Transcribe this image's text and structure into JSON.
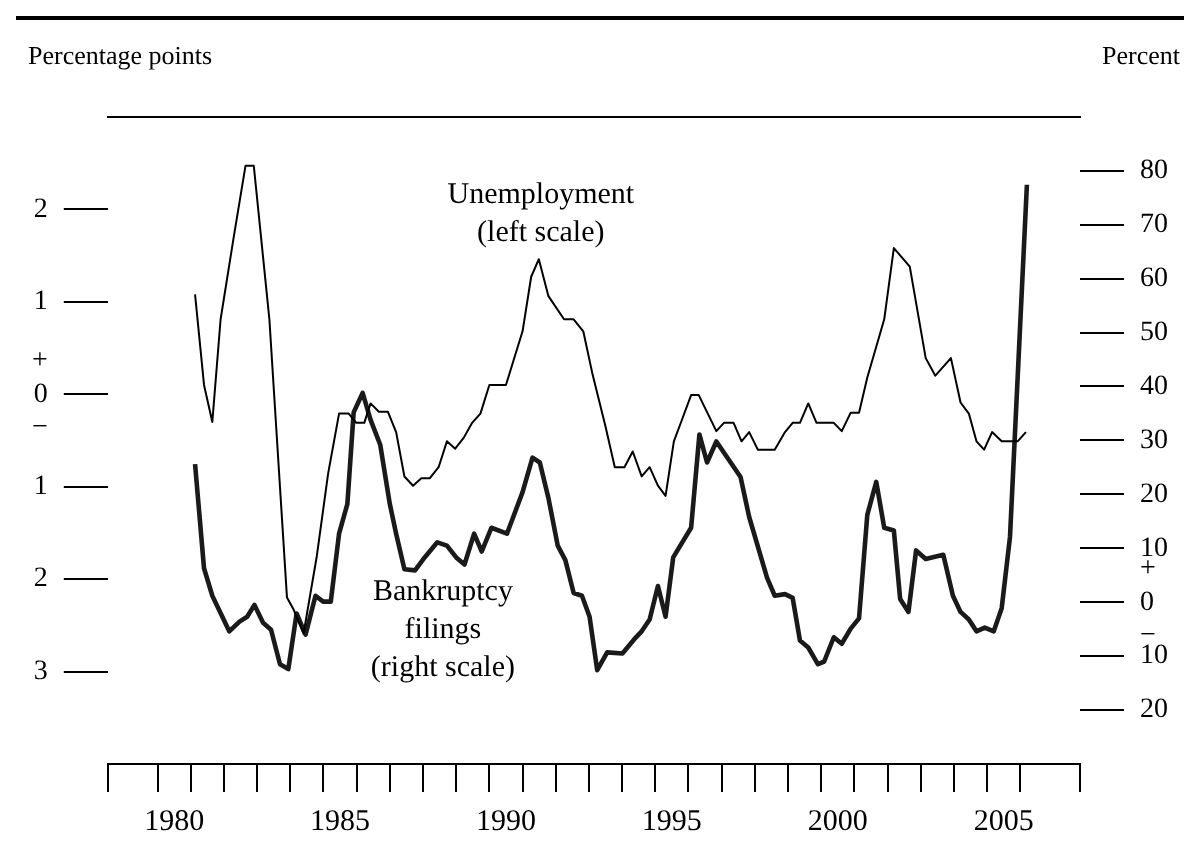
{
  "chart_data": {
    "type": "line",
    "ylabel": "Percentage points",
    "y2label": "Percent",
    "annotations": [
      "Unemployment\n(left scale)",
      "Bankruptcy\nfilings\n(right scale)"
    ],
    "xlim": [
      1978.5,
      2007.8
    ],
    "xticks": [
      {
        "value": 1978.5,
        "label": null
      },
      {
        "value": 1980,
        "label": null
      },
      {
        "value": 1980.5,
        "label": "1980"
      },
      {
        "value": 1981,
        "label": null
      },
      {
        "value": 1982,
        "label": null
      },
      {
        "value": 1983,
        "label": null
      },
      {
        "value": 1984,
        "label": null
      },
      {
        "value": 1985,
        "label": null
      },
      {
        "value": 1985.5,
        "label": "1985"
      },
      {
        "value": 1986,
        "label": null
      },
      {
        "value": 1987,
        "label": null
      },
      {
        "value": 1988,
        "label": null
      },
      {
        "value": 1989,
        "label": null
      },
      {
        "value": 1990,
        "label": null
      },
      {
        "value": 1990.5,
        "label": "1990"
      },
      {
        "value": 1991,
        "label": null
      },
      {
        "value": 1992,
        "label": null
      },
      {
        "value": 1993,
        "label": null
      },
      {
        "value": 1994,
        "label": null
      },
      {
        "value": 1995,
        "label": null
      },
      {
        "value": 1995.5,
        "label": "1995"
      },
      {
        "value": 1996,
        "label": null
      },
      {
        "value": 1997,
        "label": null
      },
      {
        "value": 1998,
        "label": null
      },
      {
        "value": 1999,
        "label": null
      },
      {
        "value": 2000,
        "label": null
      },
      {
        "value": 2000.5,
        "label": "2000"
      },
      {
        "value": 2001,
        "label": null
      },
      {
        "value": 2002,
        "label": null
      },
      {
        "value": 2003,
        "label": null
      },
      {
        "value": 2004,
        "label": null
      },
      {
        "value": 2005,
        "label": null
      },
      {
        "value": 2005.5,
        "label": "2005"
      },
      {
        "value": 2006,
        "label": null
      },
      {
        "value": 2007.8,
        "label": null
      }
    ],
    "ylim": [
      -4,
      3
    ],
    "yticks": [
      2,
      1,
      {
        "value": 0,
        "label": "+\n0\n−"
      },
      {
        "value": -1,
        "label": "1"
      },
      {
        "value": -2,
        "label": "2"
      },
      {
        "value": -3,
        "label": "3"
      }
    ],
    "y2lim": [
      -30,
      90
    ],
    "y2ticks": [
      80,
      70,
      60,
      50,
      40,
      30,
      20,
      10,
      {
        "value": 0,
        "label": "+\n0\n−"
      },
      {
        "value": -10,
        "label": "10"
      },
      {
        "value": -20,
        "label": "20"
      }
    ],
    "grid": false,
    "series": [
      {
        "color": "#000000",
        "x": [
          1981.13,
          1981.4,
          1981.65,
          1981.9,
          1982.3,
          1982.65,
          1982.9,
          1983.37,
          1983.9,
          1984.1,
          1984.4,
          1984.8,
          1985.14,
          1985.47,
          1985.76,
          1985.99,
          1986.23,
          1986.42,
          1986.67,
          1986.94,
          1987.19,
          1987.44,
          1987.7,
          1987.95,
          1988.2,
          1988.47,
          1988.72,
          1988.97,
          1989.23,
          1989.48,
          1989.73,
          1990.0,
          1990.5,
          1991.0,
          1991.26,
          1991.49,
          1991.78,
          1992.25,
          1992.54,
          1992.83,
          1993.1,
          1993.5,
          1993.78,
          1994.07,
          1994.32,
          1994.59,
          1994.83,
          1995.08,
          1995.31,
          1995.56,
          1995.79,
          1996.08,
          1996.31,
          1996.84,
          1997.07,
          1997.36,
          1997.6,
          1997.83,
          1998.09,
          1998.6,
          1998.91,
          1999.14,
          1999.36,
          1999.61,
          1999.86,
          2000.38,
          2000.62,
          2000.89,
          2001.14,
          2001.39,
          2001.9,
          2002.19,
          2002.67,
          2003.15,
          2003.44,
          2003.91,
          2004.2,
          2004.45,
          2004.68,
          2004.91,
          2005.15,
          2005.44,
          2005.92,
          2006.17
        ],
        "values": [
          1.08,
          0.1,
          -0.3,
          0.81,
          1.71,
          2.47,
          2.47,
          0.81,
          -2.2,
          -2.33,
          -2.59,
          -1.75,
          -0.86,
          -0.21,
          -0.21,
          -0.31,
          -0.31,
          -0.1,
          -0.19,
          -0.19,
          -0.41,
          -0.89,
          -0.99,
          -0.91,
          -0.91,
          -0.79,
          -0.51,
          -0.59,
          -0.47,
          -0.31,
          -0.21,
          0.1,
          0.1,
          0.68,
          1.27,
          1.46,
          1.06,
          0.81,
          0.81,
          0.68,
          0.23,
          -0.35,
          -0.79,
          -0.79,
          -0.62,
          -0.89,
          -0.79,
          -0.99,
          -1.1,
          -0.51,
          -0.29,
          -0.01,
          -0.01,
          -0.4,
          -0.31,
          -0.31,
          -0.51,
          -0.41,
          -0.6,
          -0.6,
          -0.41,
          -0.31,
          -0.31,
          -0.1,
          -0.31,
          -0.31,
          -0.4,
          -0.2,
          -0.2,
          0.18,
          0.81,
          1.58,
          1.38,
          0.39,
          0.2,
          0.39,
          -0.09,
          -0.21,
          -0.51,
          -0.6,
          -0.41,
          -0.51,
          -0.51,
          -0.41
        ]
      },
      {
        "color": "#1a1a1a",
        "axis": "y2",
        "x": [
          1981.13,
          1981.4,
          1981.65,
          1982.16,
          1982.47,
          1982.7,
          1982.92,
          1983.18,
          1983.42,
          1983.69,
          1983.94,
          1984.19,
          1984.46,
          1984.76,
          1984.99,
          1985.22,
          1985.47,
          1985.72,
          1985.91,
          1986.18,
          1986.42,
          1986.71,
          1987.0,
          1987.19,
          1987.44,
          1987.76,
          1988.05,
          1988.43,
          1988.72,
          1989.0,
          1989.25,
          1989.54,
          1989.77,
          1990.06,
          1990.53,
          1991.0,
          1991.3,
          1991.52,
          1991.78,
          1992.06,
          1992.29,
          1992.54,
          1992.79,
          1993.02,
          1993.25,
          1993.55,
          1994.01,
          1994.36,
          1994.59,
          1994.83,
          1995.08,
          1995.31,
          1995.54,
          1996.08,
          1996.33,
          1996.56,
          1996.84,
          1997.57,
          1997.83,
          1998.37,
          1998.6,
          1998.91,
          1999.14,
          1999.36,
          1999.61,
          1999.9,
          2000.09,
          2000.38,
          2000.62,
          2000.89,
          2001.14,
          2001.39,
          2001.66,
          2001.9,
          2002.19,
          2002.38,
          2002.63,
          2002.86,
          2003.15,
          2003.68,
          2003.97,
          2004.2,
          2004.45,
          2004.68,
          2004.93,
          2005.2,
          2005.44,
          2005.69,
          2006.2
        ],
        "values": [
          25.6,
          6.3,
          1.2,
          -5.4,
          -3.6,
          -2.7,
          -0.5,
          -3.8,
          -5.1,
          -11.5,
          -12.4,
          -2.1,
          -6,
          1.2,
          0.1,
          0.1,
          12.7,
          18.2,
          35.2,
          38.8,
          33.8,
          29.2,
          18.2,
          12.7,
          6.1,
          5.9,
          8.3,
          11.1,
          10.5,
          8.3,
          7,
          12.7,
          9.4,
          13.8,
          12.7,
          20.4,
          26.8,
          25.9,
          19.3,
          10.5,
          7.8,
          1.7,
          1.2,
          -2.7,
          -12.6,
          -9.3,
          -9.5,
          -6.9,
          -5.4,
          -3.2,
          3,
          -2.7,
          8.3,
          13.8,
          31.1,
          25.9,
          29.8,
          23.2,
          15.8,
          4.5,
          1.2,
          1.5,
          0.8,
          -7.1,
          -8.4,
          -11.5,
          -11,
          -6.5,
          -7.7,
          -4.9,
          -3,
          16.2,
          22.3,
          13.8,
          13.3,
          0.6,
          -1.8,
          9.6,
          8,
          8.8,
          1.2,
          -1.8,
          -3.2,
          -5.4,
          -4.7,
          -5.4,
          -1.1,
          12.1,
          77.4
        ]
      }
    ]
  }
}
